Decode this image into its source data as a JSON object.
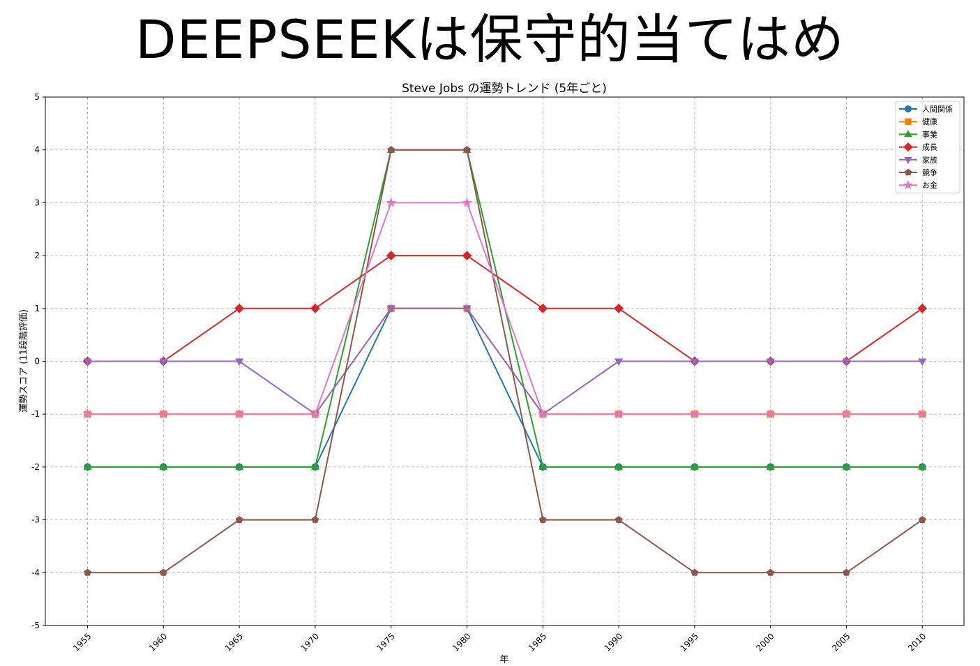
{
  "banner": {
    "text": "DEEPSEEKは保守的当てはめ"
  },
  "chart_data": {
    "type": "line",
    "title": "Steve Jobs の運勢トレンド (5年ごと)",
    "xlabel": "年",
    "ylabel": "運勢スコア (11段階評価)",
    "x": [
      "1955",
      "1960",
      "1965",
      "1970",
      "1975",
      "1980",
      "1985",
      "1990",
      "1995",
      "2000",
      "2005",
      "2010"
    ],
    "yticks": [
      "5",
      "4",
      "3",
      "2",
      "1",
      "0",
      "-1",
      "-2",
      "-3",
      "-4",
      "-5"
    ],
    "ylim": [
      -5,
      5
    ],
    "grid": true,
    "legend_position": "top-right",
    "series": [
      {
        "name": "人間関係",
        "color": "#1f77b4",
        "marker": "circle",
        "values": [
          -2,
          -2,
          -2,
          -2,
          1,
          1,
          -2,
          -2,
          -2,
          -2,
          -2,
          -2
        ]
      },
      {
        "name": "健康",
        "color": "#ff7f0e",
        "marker": "square",
        "values": [
          -1,
          -1,
          -1,
          -1,
          1,
          1,
          -1,
          -1,
          -1,
          -1,
          -1,
          -1
        ]
      },
      {
        "name": "事業",
        "color": "#2ca02c",
        "marker": "triangle-up",
        "values": [
          -2,
          -2,
          -2,
          -2,
          4,
          4,
          -2,
          -2,
          -2,
          -2,
          -2,
          -2
        ]
      },
      {
        "name": "成長",
        "color": "#d62728",
        "marker": "diamond",
        "values": [
          0,
          0,
          1,
          1,
          2,
          2,
          1,
          1,
          0,
          0,
          0,
          1
        ]
      },
      {
        "name": "家族",
        "color": "#9467bd",
        "marker": "triangle-down",
        "values": [
          0,
          0,
          0,
          -1,
          1,
          1,
          -1,
          0,
          0,
          0,
          0,
          0
        ]
      },
      {
        "name": "競争",
        "color": "#8c564b",
        "marker": "pentagon",
        "values": [
          -4,
          -4,
          -3,
          -3,
          4,
          4,
          -3,
          -3,
          -4,
          -4,
          -4,
          -3
        ]
      },
      {
        "name": "お金",
        "color": "#e377c2",
        "marker": "star",
        "values": [
          -1,
          -1,
          -1,
          -1,
          3,
          3,
          -1,
          -1,
          -1,
          -1,
          -1,
          -1
        ]
      }
    ]
  }
}
